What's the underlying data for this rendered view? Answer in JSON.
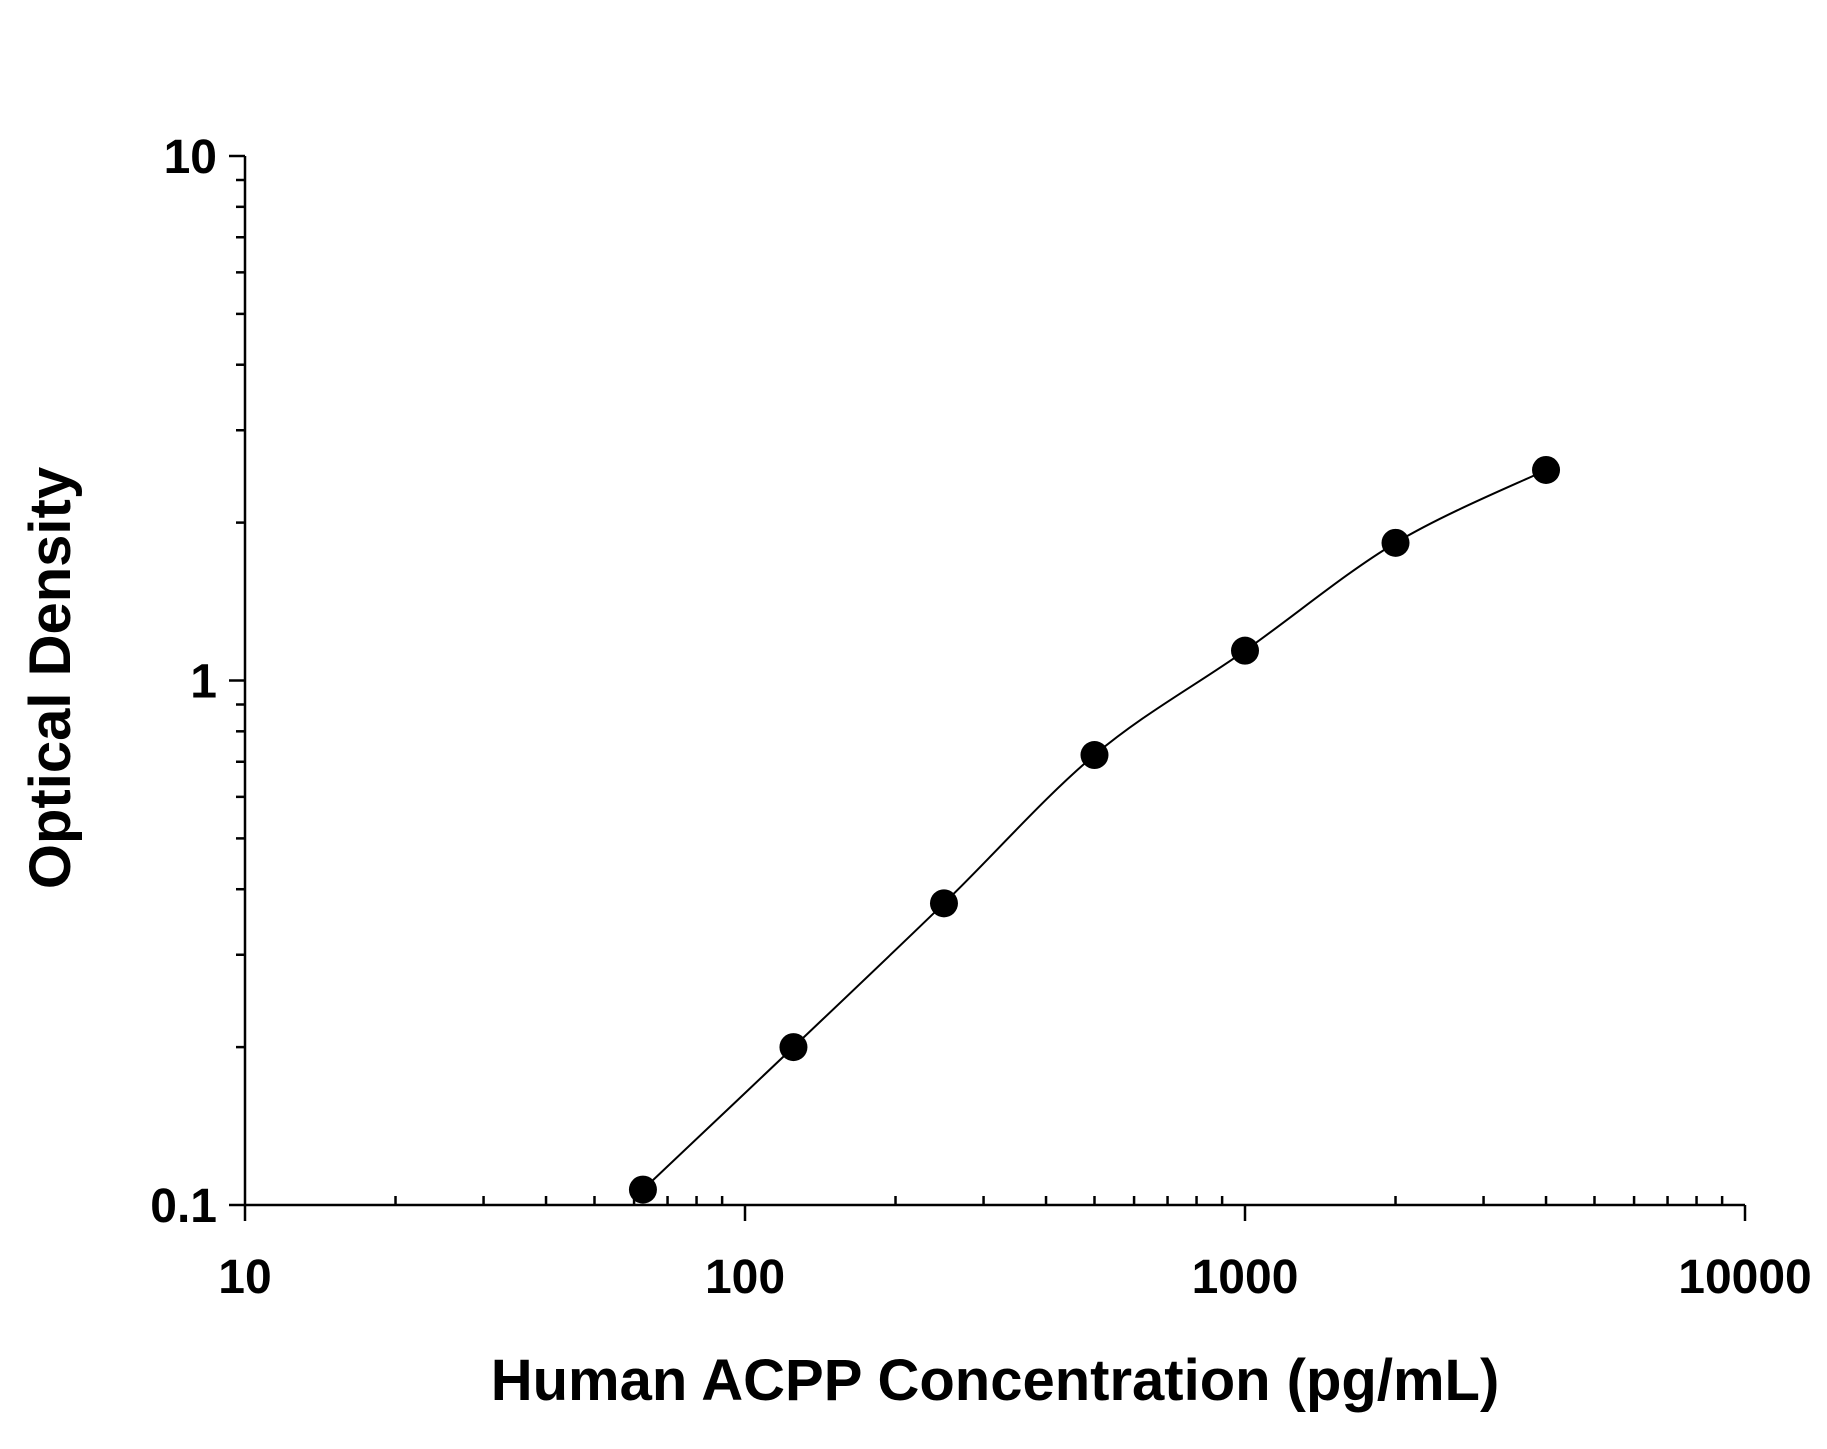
{
  "chart_data": {
    "type": "scatter",
    "x_label": "Human ACPP Concentration (pg/mL)",
    "y_label": "Optical Density",
    "x": [
      62.5,
      125,
      250,
      500,
      1000,
      2000,
      4000
    ],
    "series": [
      {
        "color": "#000000",
        "values": [
          0.107,
          0.2,
          0.376,
          0.721,
          1.14,
          1.83,
          2.52
        ]
      }
    ],
    "x_scale": "log",
    "y_scale": "log",
    "xlim": [
      10,
      10000
    ],
    "xticks": [
      10,
      100,
      1000,
      10000
    ],
    "ylim": [
      0.1,
      10
    ],
    "yticks": [
      0.1,
      1,
      10
    ],
    "fit_line": true
  }
}
